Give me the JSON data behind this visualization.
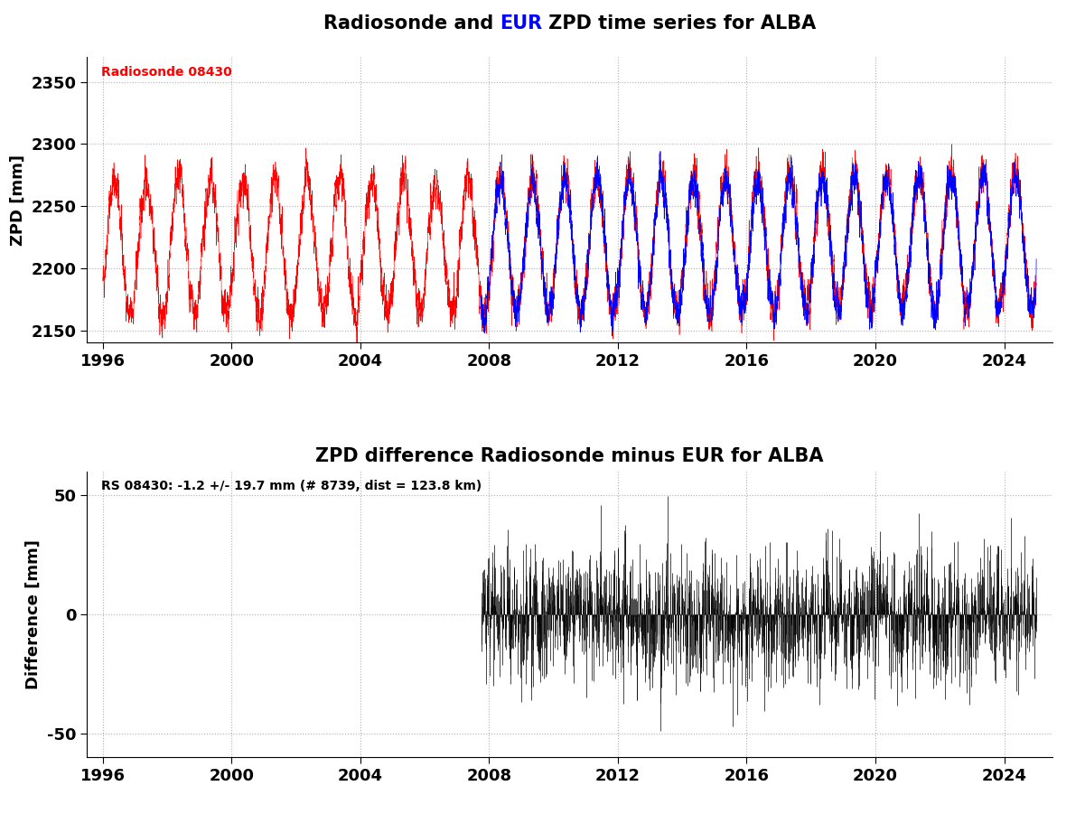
{
  "title1_parts": [
    {
      "text": "Radiosonde and ",
      "color": "black"
    },
    {
      "text": "EUR",
      "color": "blue"
    },
    {
      "text": " ZPD time series for ALBA",
      "color": "black"
    }
  ],
  "title2": "ZPD difference Radiosonde minus EUR for ALBA",
  "ylabel1": "ZPD [mm]",
  "ylabel2": "Difference [mm]",
  "ylim1": [
    2140,
    2370
  ],
  "ylim2": [
    -60,
    60
  ],
  "yticks1": [
    2150,
    2200,
    2250,
    2300,
    2350
  ],
  "yticks2": [
    -50,
    0,
    50
  ],
  "xticks": [
    1996,
    2000,
    2004,
    2008,
    2012,
    2016,
    2020,
    2024
  ],
  "xlim": [
    1995.5,
    2025.5
  ],
  "radiosonde_label": "Radiosonde 08430",
  "diff_label": "RS 08430: -1.2 +/- 19.7 mm (# 8739, dist = 123.8 km)",
  "rs_color": "#ff0000",
  "epn_color": "#0000ff",
  "diff_color": "#000000",
  "background_color": "#ffffff",
  "grid_color": "#b0b0b0",
  "title_fontsize": 15,
  "label_fontsize": 13,
  "tick_fontsize": 13,
  "annotation_fontsize": 10,
  "rs_start_year": 1996.0,
  "rs_end_year": 2025.0,
  "epn_start_year": 2007.75,
  "epn_end_year": 2025.0,
  "diff_start_year": 2007.75,
  "diff_end_year": 2025.0,
  "seed": 42,
  "zpd_base": 2215,
  "zpd_amp": 55,
  "zpd_noise": 20,
  "diff_noise": 19.7,
  "diff_mean": -1.2
}
